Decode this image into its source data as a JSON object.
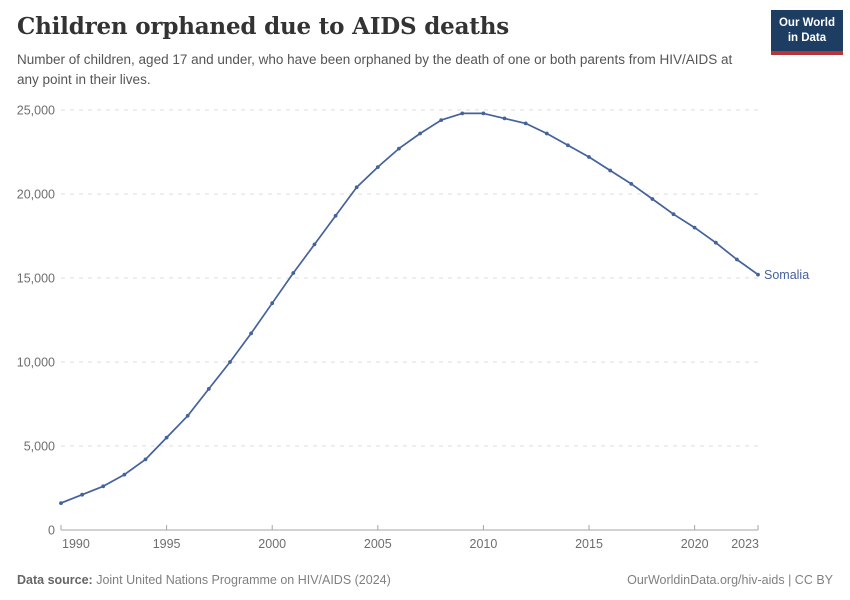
{
  "header": {
    "title": "Children orphaned due to AIDS deaths",
    "subtitle": "Number of children, aged 17 and under, who have been orphaned by the death of one or both parents from HIV/AIDS at any point in their lives."
  },
  "logo": {
    "line1": "Our World",
    "line2": "in Data"
  },
  "footer": {
    "source_label": "Data source:",
    "source_text": " Joint United Nations Programme on HIV/AIDS (2024)",
    "attribution": "OurWorldinData.org/hiv-aids | CC BY"
  },
  "colors": {
    "line": "#44629b",
    "grid": "#dddddd",
    "axis": "#a5a5a5",
    "tick_label": "#6e6e6e",
    "entity_label": "#44629b",
    "logo_bg": "#1d3d63",
    "logo_bar": "#b5353c"
  },
  "chart_data": {
    "type": "line",
    "title": "Children orphaned due to AIDS deaths",
    "xlabel": "",
    "ylabel": "",
    "x": [
      1990,
      1991,
      1992,
      1993,
      1994,
      1995,
      1996,
      1997,
      1998,
      1999,
      2000,
      2001,
      2002,
      2003,
      2004,
      2005,
      2006,
      2007,
      2008,
      2009,
      2010,
      2011,
      2012,
      2013,
      2014,
      2015,
      2016,
      2017,
      2018,
      2019,
      2020,
      2021,
      2022,
      2023
    ],
    "series": [
      {
        "name": "Somalia",
        "values": [
          1600,
          2100,
          2600,
          3300,
          4200,
          5500,
          6800,
          8400,
          10000,
          11700,
          13500,
          15300,
          17000,
          18700,
          20400,
          21600,
          22700,
          23600,
          24400,
          24800,
          24800,
          24500,
          24200,
          23600,
          22900,
          22200,
          21400,
          20600,
          19700,
          18800,
          18000,
          17100,
          16100,
          15200
        ]
      }
    ],
    "xlim": [
      1990,
      2023
    ],
    "ylim": [
      0,
      25000
    ],
    "xticks": [
      1990,
      1995,
      2000,
      2005,
      2010,
      2015,
      2020,
      2023
    ],
    "yticks": [
      0,
      5000,
      10000,
      15000,
      20000,
      25000
    ],
    "grid": "horizontal-dashed",
    "legend_position": "end-of-line-label"
  }
}
